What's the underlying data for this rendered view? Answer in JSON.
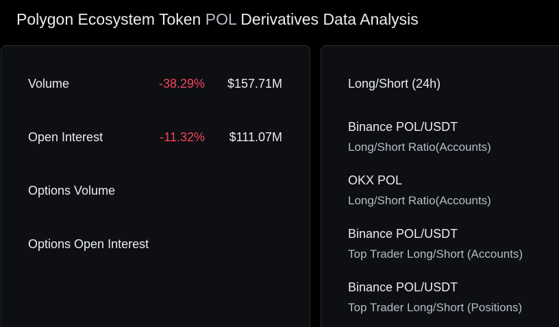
{
  "header": {
    "title_prefix": "Polygon Ecosystem Token ",
    "title_symbol": "POL",
    "title_suffix": " Derivatives Data Analysis"
  },
  "metrics": [
    {
      "label": "Volume",
      "change": "-38.29%",
      "value": "$157.71M"
    },
    {
      "label": "Open Interest",
      "change": "-11.32%",
      "value": "$111.07M"
    },
    {
      "label": "Options Volume",
      "change": "",
      "value": ""
    },
    {
      "label": "Options Open Interest",
      "change": "",
      "value": ""
    }
  ],
  "long_short": {
    "header": "Long/Short (24h)",
    "items": [
      {
        "name": "Binance POL/USDT",
        "subtitle": "Long/Short Ratio(Accounts)"
      },
      {
        "name": "OKX POL",
        "subtitle": "Long/Short Ratio(Accounts)"
      },
      {
        "name": "Binance POL/USDT",
        "subtitle": "Top Trader Long/Short (Accounts)"
      },
      {
        "name": "Binance POL/USDT",
        "subtitle": "Top Trader Long/Short (Positions)"
      }
    ]
  },
  "colors": {
    "background": "#000000",
    "card": "#0d0f13",
    "border": "#2b2f36",
    "text_primary": "#eaecef",
    "text_secondary": "#b7bdc6",
    "negative": "#f6465d"
  }
}
